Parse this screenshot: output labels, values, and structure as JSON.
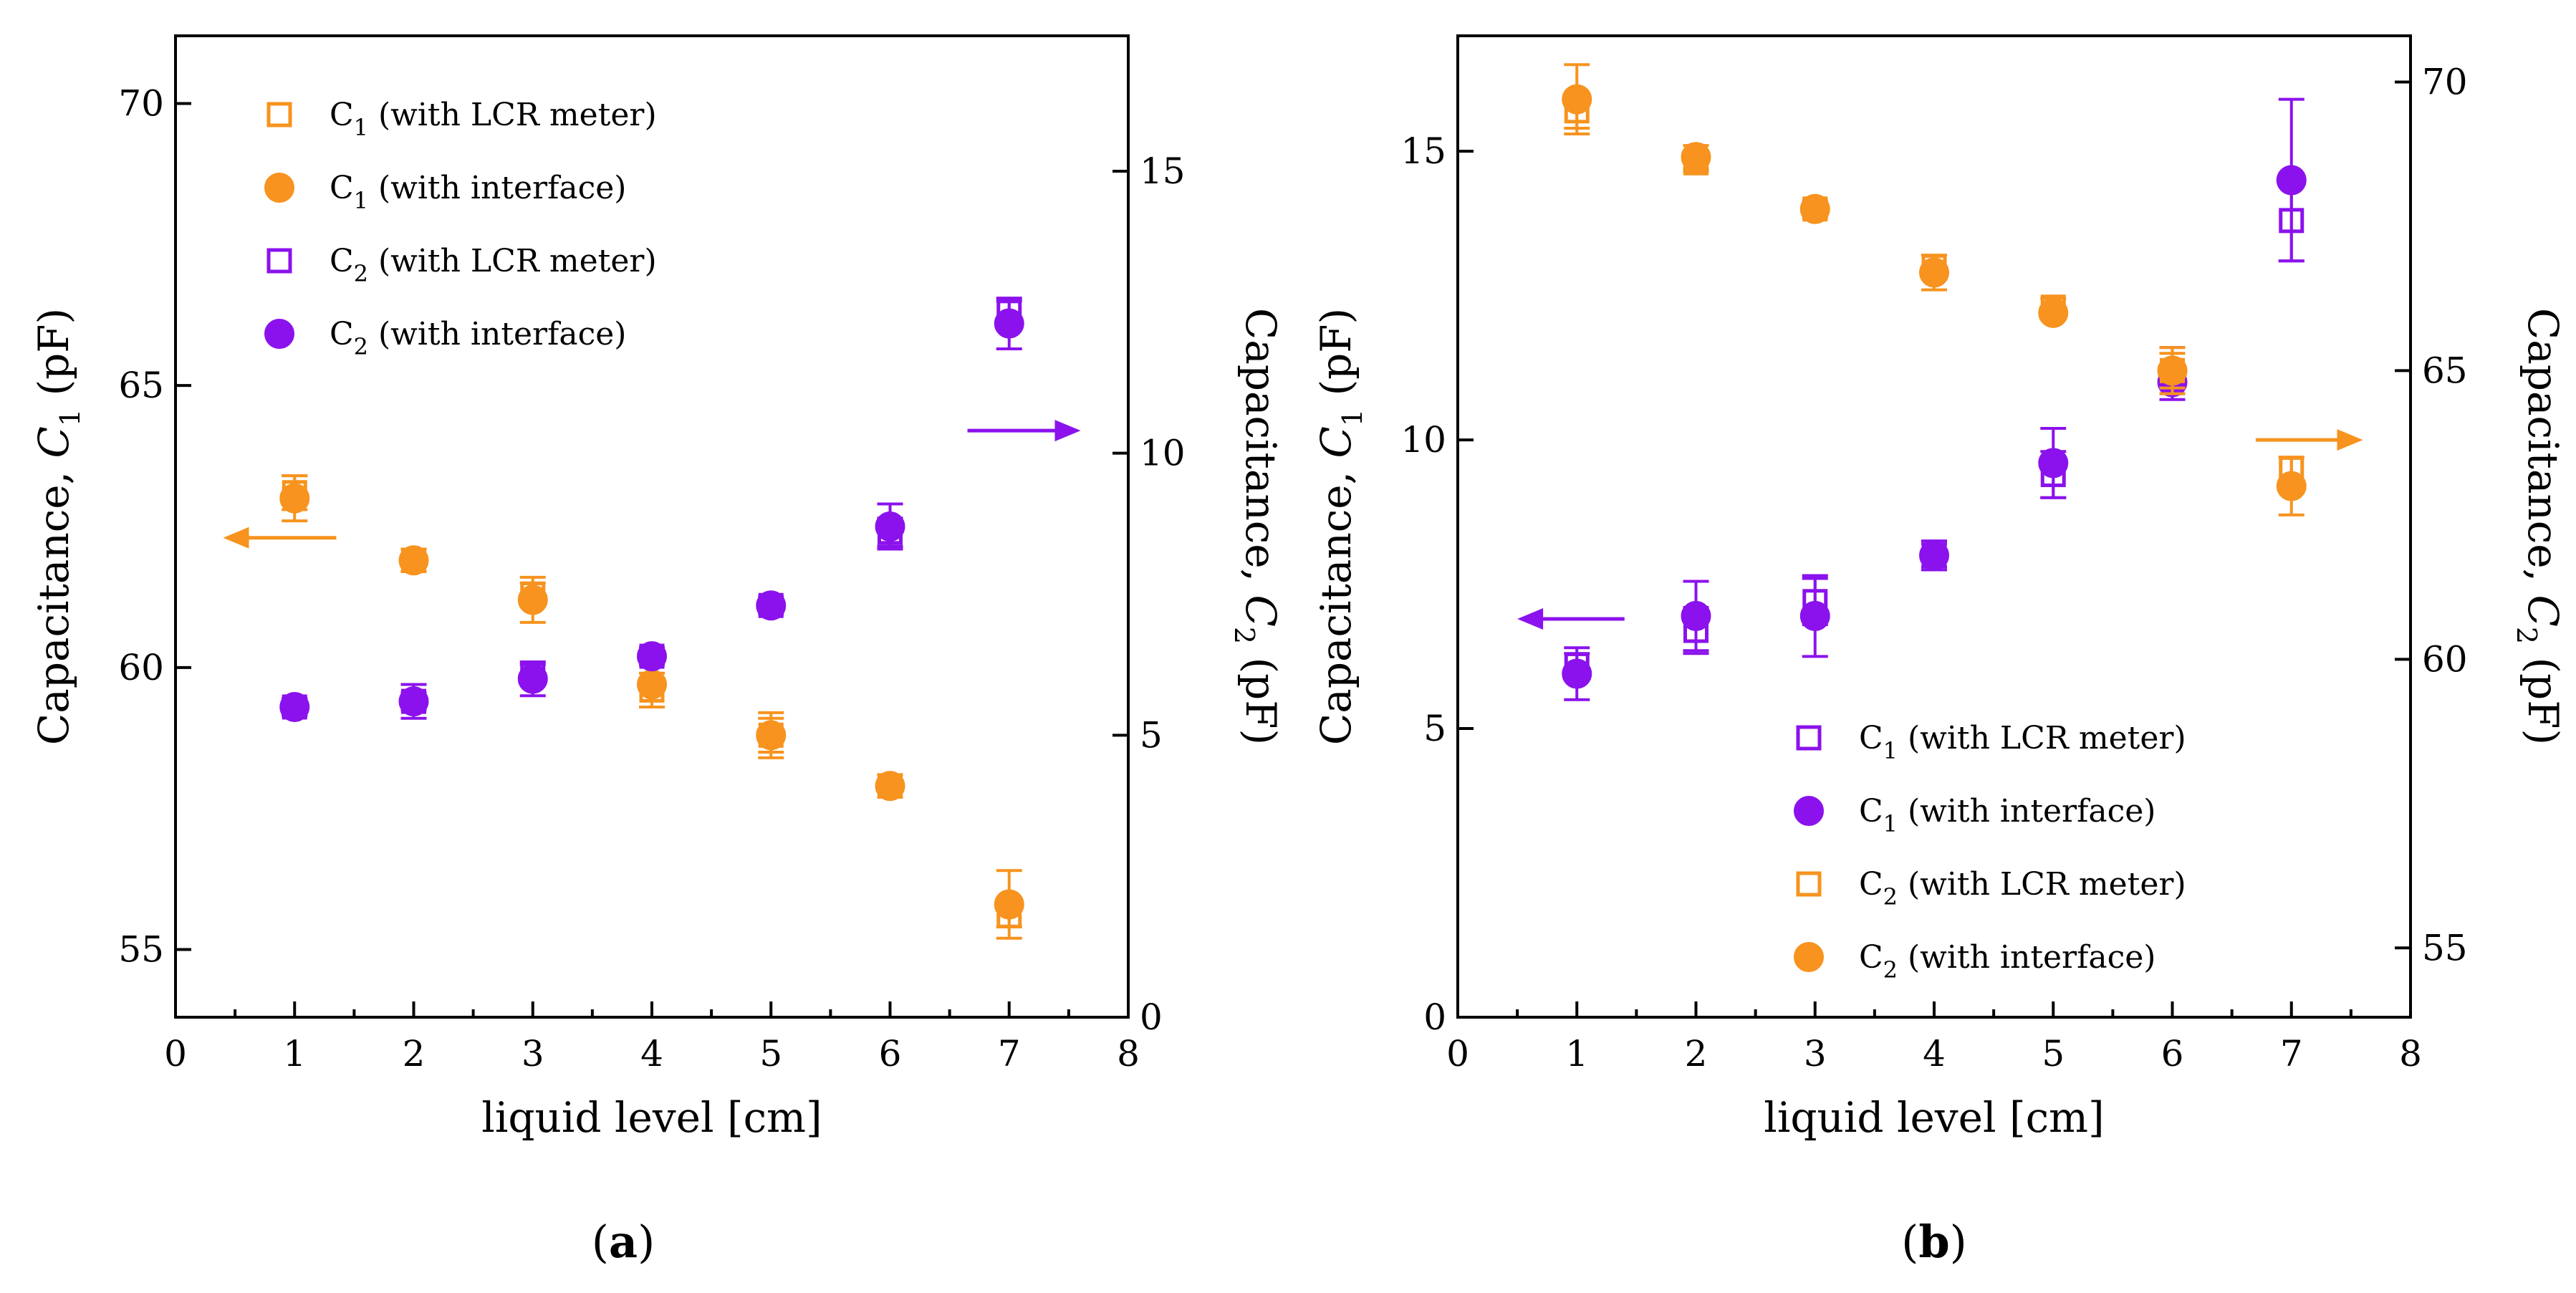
{
  "colors": {
    "orange": "#F7931E",
    "purple": "#8B12EC"
  },
  "panel_labels": {
    "a": "a",
    "b": "b"
  },
  "chart_data": [
    {
      "panel": "a",
      "type": "scatter",
      "xlabel": "liquid level [cm]",
      "xlim": [
        0,
        8
      ],
      "xticks": [
        0,
        1,
        2,
        3,
        4,
        5,
        6,
        7,
        8
      ],
      "y_left": {
        "label": "Capacitance, C1 (pF)",
        "label_main": "Capacitance, ",
        "label_var": "C",
        "label_sub": "1",
        "label_unit": " (pF)",
        "lim": [
          53.8,
          71.2
        ],
        "ticks": [
          55,
          60,
          65,
          70
        ]
      },
      "y_right": {
        "label": "Capacitance, C2 (pF)",
        "label_main": "Capacitance, ",
        "label_var": "C",
        "label_sub": "2",
        "label_unit": " (pF)",
        "lim": [
          0,
          17.4
        ],
        "ticks": [
          0,
          5,
          10,
          15
        ]
      },
      "x": [
        1,
        2,
        3,
        4,
        5,
        6,
        7
      ],
      "series": [
        {
          "name": "C1 (with LCR meter)",
          "legend_main": "C",
          "legend_sub": "1",
          "legend_rest": " (with LCR meter)",
          "marker": "square-open",
          "color": "orange",
          "axis": "left",
          "y": [
            63.1,
            61.9,
            61.3,
            59.6,
            58.8,
            57.9,
            55.6
          ],
          "err": [
            0.3,
            0.2,
            0.2,
            0.3,
            0.3,
            0.1,
            0.2
          ]
        },
        {
          "name": "C1 (with interface)",
          "legend_main": "C",
          "legend_sub": "1",
          "legend_rest": " (with interface)",
          "marker": "circle",
          "color": "orange",
          "axis": "left",
          "y": [
            63.0,
            61.9,
            61.2,
            59.7,
            58.8,
            57.9,
            55.8
          ],
          "err": [
            0.4,
            0.2,
            0.4,
            0.4,
            0.4,
            0.2,
            0.6
          ]
        },
        {
          "name": "C2 (with LCR meter)",
          "legend_main": "C",
          "legend_sub": "2",
          "legend_rest": " (with LCR meter)",
          "marker": "square-open",
          "color": "purple",
          "axis": "right",
          "y": [
            5.5,
            5.6,
            6.1,
            6.4,
            7.3,
            8.6,
            12.5
          ],
          "err": [
            0.15,
            0.15,
            0.15,
            0.15,
            0.15,
            0.25,
            0.2
          ]
        },
        {
          "name": "C2 (with interface)",
          "legend_main": "C",
          "legend_sub": "2",
          "legend_rest": " (with interface)",
          "marker": "circle",
          "color": "purple",
          "axis": "right",
          "y": [
            5.5,
            5.6,
            6.0,
            6.4,
            7.3,
            8.7,
            12.3
          ],
          "err": [
            0.15,
            0.3,
            0.3,
            0.15,
            0.1,
            0.4,
            0.45
          ]
        }
      ],
      "arrows": [
        {
          "direction": "left",
          "color": "orange",
          "x_from": 1.35,
          "x_to": 0.4,
          "y_left": 62.3
        },
        {
          "direction": "right",
          "color": "purple",
          "x_from": 6.65,
          "x_to": 7.6,
          "y_left": 64.2
        }
      ],
      "legend_position": "top-left"
    },
    {
      "panel": "b",
      "type": "scatter",
      "xlabel": "liquid level [cm]",
      "xlim": [
        0,
        8
      ],
      "xticks": [
        0,
        1,
        2,
        3,
        4,
        5,
        6,
        7,
        8
      ],
      "y_left": {
        "label": "Capacitance, C1 (pF)",
        "label_main": "Capacitance, ",
        "label_var": "C",
        "label_sub": "1",
        "label_unit": " (pF)",
        "lim": [
          0,
          17
        ],
        "ticks": [
          0,
          5,
          10,
          15
        ]
      },
      "y_right": {
        "label": "Capacitance, C2 (pF)",
        "label_main": "Capacitance, ",
        "label_var": "C",
        "label_sub": "2",
        "label_unit": " (pF)",
        "lim": [
          53.8,
          70.8
        ],
        "ticks": [
          55,
          60,
          65,
          70
        ]
      },
      "x": [
        1,
        2,
        3,
        4,
        5,
        6,
        7
      ],
      "series": [
        {
          "name": "C1 (with LCR meter)",
          "legend_main": "C",
          "legend_sub": "1",
          "legend_rest": " (with LCR meter)",
          "marker": "square-open",
          "color": "purple",
          "axis": "left",
          "y": [
            6.1,
            6.7,
            7.2,
            8.0,
            9.4,
            11.2,
            13.8
          ],
          "err": [
            0.2,
            0.4,
            0.4,
            0.2,
            0.4,
            0.4,
            0.7
          ]
        },
        {
          "name": "C1 (with interface)",
          "legend_main": "C",
          "legend_sub": "1",
          "legend_rest": " (with interface)",
          "marker": "circle",
          "color": "purple",
          "axis": "left",
          "y": [
            5.95,
            6.95,
            6.95,
            8.0,
            9.6,
            11.0,
            14.5
          ],
          "err": [
            0.45,
            0.6,
            0.7,
            0.25,
            0.6,
            0.3,
            1.4
          ]
        },
        {
          "name": "C2 (with LCR meter)",
          "legend_main": "C",
          "legend_sub": "2",
          "legend_rest": " (with LCR meter)",
          "marker": "square-open",
          "color": "orange",
          "axis": "right",
          "y": [
            69.5,
            68.6,
            67.8,
            66.8,
            66.1,
            65.0,
            63.3
          ],
          "err": [
            0.3,
            0.15,
            0.15,
            0.2,
            0.15,
            0.4,
            0.2
          ]
        },
        {
          "name": "C2 (with interface)",
          "legend_main": "C",
          "legend_sub": "2",
          "legend_rest": " (with interface)",
          "marker": "circle",
          "color": "orange",
          "axis": "right",
          "y": [
            69.7,
            68.7,
            67.8,
            66.7,
            66.0,
            65.0,
            63.0
          ],
          "err": [
            0.6,
            0.2,
            0.1,
            0.3,
            0.1,
            0.3,
            0.5
          ]
        }
      ],
      "arrows": [
        {
          "direction": "left",
          "color": "purple",
          "x_from": 1.4,
          "x_to": 0.5,
          "y_left": 6.9
        },
        {
          "direction": "right",
          "color": "orange",
          "x_from": 6.7,
          "x_to": 7.6,
          "y_left": 10.0
        }
      ],
      "legend_position": "bottom-right"
    }
  ]
}
